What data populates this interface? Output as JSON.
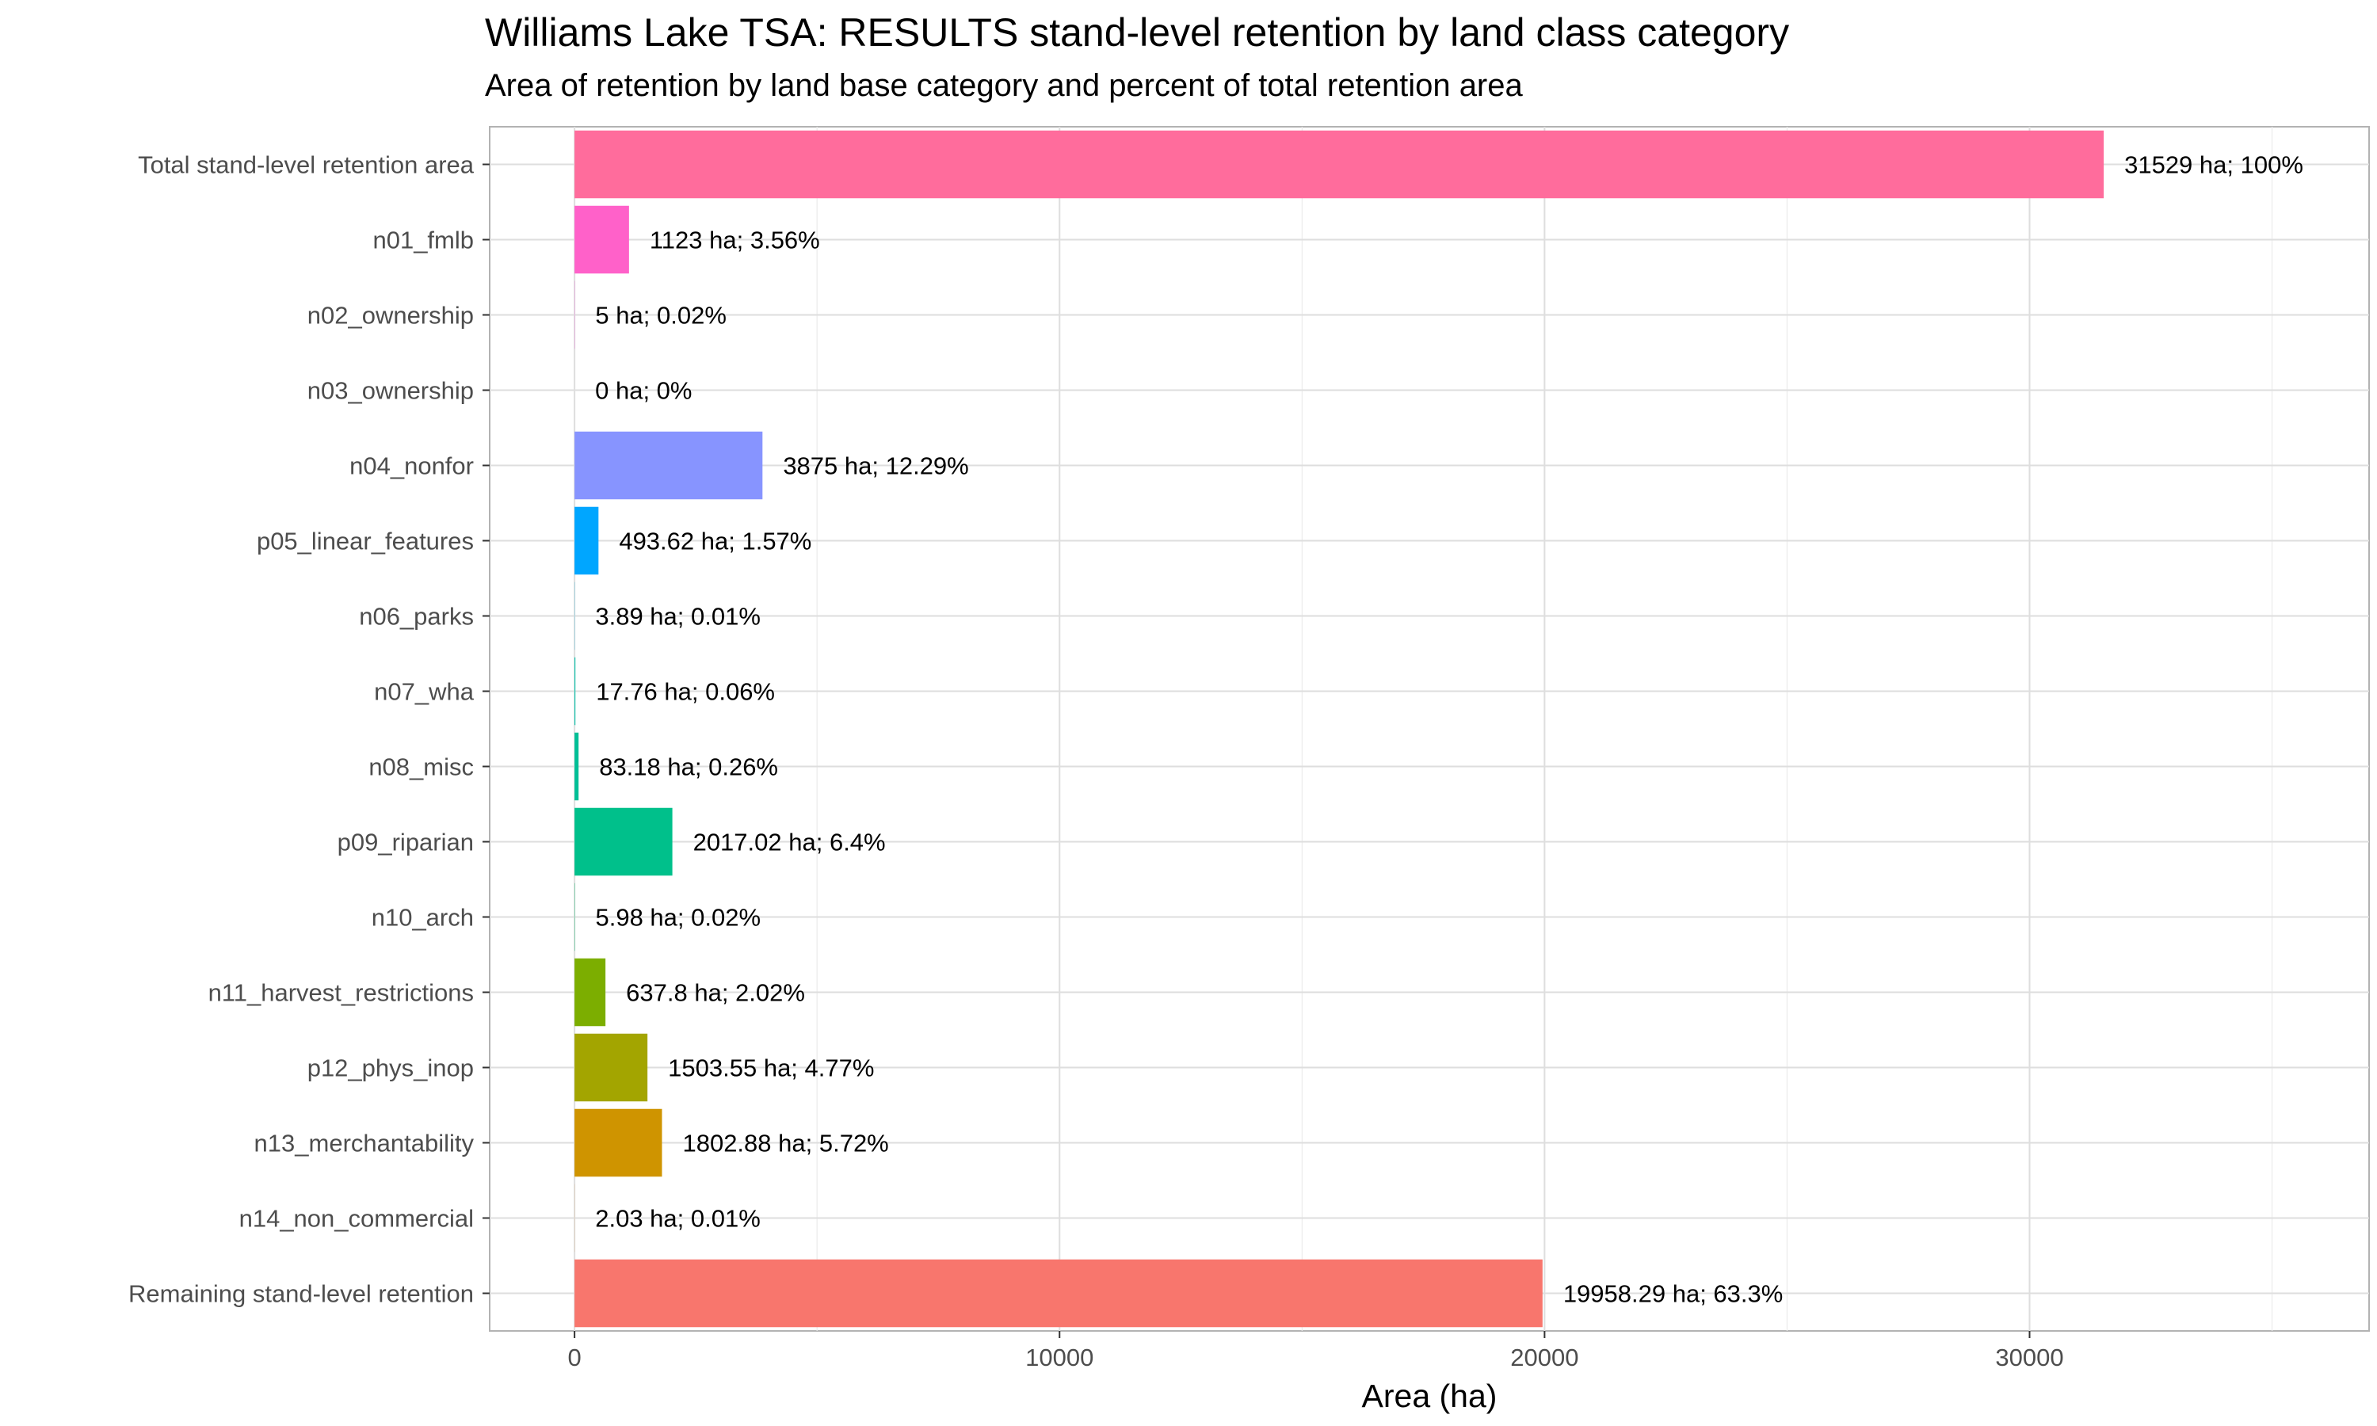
{
  "chart_data": {
    "type": "bar",
    "orientation": "horizontal",
    "title": "Williams Lake TSA: RESULTS stand-level retention by land class category",
    "subtitle": "Area of retention by land base category and percent of total retention area",
    "xlabel": "Area (ha)",
    "ylabel": "",
    "xlim": [
      -1750,
      37000
    ],
    "x_ticks": [
      0,
      10000,
      20000,
      30000
    ],
    "grid": true,
    "legend": "none",
    "categories": [
      "Total stand-level retention area",
      "n01_fmlb",
      "n02_ownership",
      "n03_ownership",
      "n04_nonfor",
      "p05_linear_features",
      "n06_parks",
      "n07_wha",
      "n08_misc",
      "p09_riparian",
      "n10_arch",
      "n11_harvest_restrictions",
      "p12_phys_inop",
      "n13_merchantability",
      "n14_non_commercial",
      "Remaining stand-level retention"
    ],
    "values": [
      31529,
      1123,
      5,
      0,
      3875,
      493.62,
      3.89,
      17.76,
      83.18,
      2017.02,
      5.98,
      637.8,
      1503.55,
      1802.88,
      2.03,
      19958.29
    ],
    "labels": [
      "31529 ha; 100%",
      "1123 ha; 3.56%",
      "5 ha; 0.02%",
      "0 ha; 0%",
      "3875 ha; 12.29%",
      "493.62 ha; 1.57%",
      "3.89 ha; 0.01%",
      "17.76 ha; 0.06%",
      "83.18 ha; 0.26%",
      "2017.02 ha; 6.4%",
      "5.98 ha; 0.02%",
      "637.8 ha; 2.02%",
      "1503.55 ha; 4.77%",
      "1802.88 ha; 5.72%",
      "2.03 ha; 0.01%",
      "19958.29 ha; 63.3%"
    ],
    "colors": [
      "#FF6C9C",
      "#FF61C9",
      "#F763E0",
      "#E36EF6",
      "#8794FF",
      "#00A6FF",
      "#00B8E5",
      "#00C1A9",
      "#00BF96",
      "#00C08B",
      "#00BE67",
      "#7CAE00",
      "#A3A500",
      "#CF9400",
      "#E68613",
      "#F8766D"
    ]
  }
}
